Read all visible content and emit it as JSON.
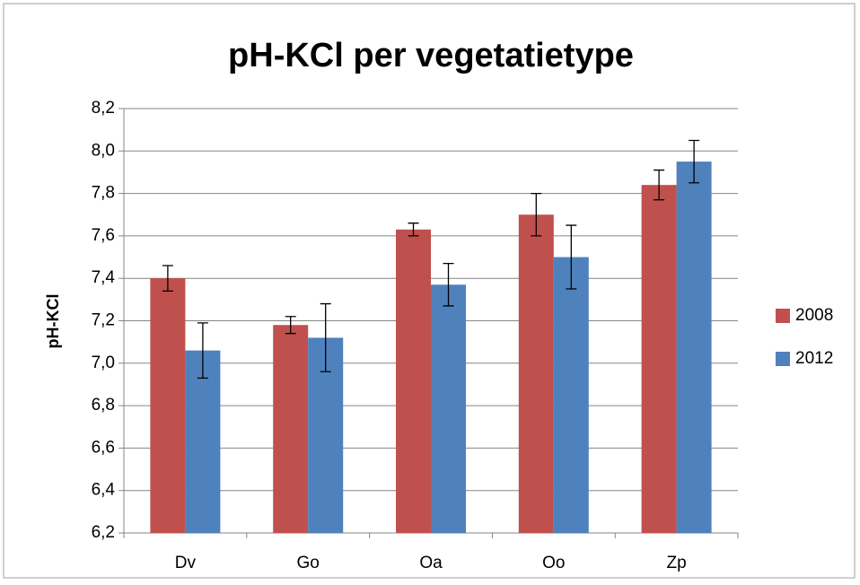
{
  "chart_data": {
    "type": "bar",
    "title": "pH-KCl per vegetatietype",
    "y_label": "pH-KCl",
    "categories": [
      "Dv",
      "Go",
      "Oa",
      "Oo",
      "Zp"
    ],
    "series": [
      {
        "name": "2008",
        "color": "#c0504d",
        "values": [
          7.4,
          7.18,
          7.63,
          7.7,
          7.84
        ],
        "errors": [
          0.06,
          0.04,
          0.03,
          0.1,
          0.07
        ]
      },
      {
        "name": "2012",
        "color": "#4f81bd",
        "values": [
          7.06,
          7.12,
          7.37,
          7.5,
          7.95
        ],
        "errors": [
          0.13,
          0.16,
          0.1,
          0.15,
          0.1
        ]
      }
    ],
    "ylim": [
      6.2,
      8.2
    ],
    "yticks": [
      {
        "value": 6.2,
        "label": "6,2"
      },
      {
        "value": 6.4,
        "label": "6,4"
      },
      {
        "value": 6.6,
        "label": "6,6"
      },
      {
        "value": 6.8,
        "label": "6,8"
      },
      {
        "value": 7.0,
        "label": "7,0"
      },
      {
        "value": 7.2,
        "label": "7,2"
      },
      {
        "value": 7.4,
        "label": "7,4"
      },
      {
        "value": 7.6,
        "label": "7,6"
      },
      {
        "value": 7.8,
        "label": "7,8"
      },
      {
        "value": 8.0,
        "label": "8,0"
      },
      {
        "value": 8.2,
        "label": "8,2"
      }
    ],
    "grid": true,
    "legend": "right"
  }
}
